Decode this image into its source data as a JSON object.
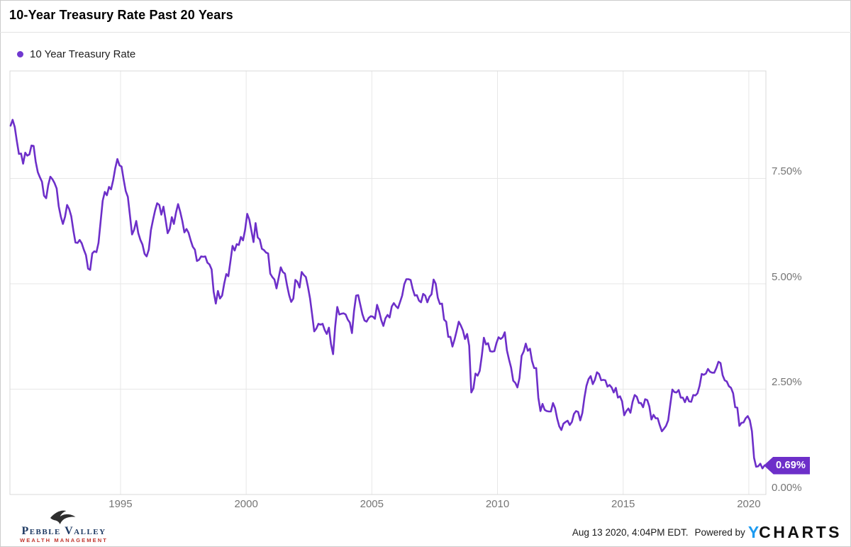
{
  "header": {
    "title": "10-Year Treasury Rate Past 20 Years"
  },
  "legend": {
    "label": "10 Year Treasury Rate",
    "dot_color": "#7038d0"
  },
  "chart_data": {
    "type": "line",
    "title": "10-Year Treasury Rate Past 20 Years",
    "series_name": "10 Year Treasury Rate",
    "line_color": "#6d2fc9",
    "grid_color": "#e7e7e7",
    "frame_color": "#d9d9d9",
    "legend_position": "top-left",
    "grid": true,
    "xlim": [
      1990.6,
      2020.68
    ],
    "ylim": [
      0,
      10.05
    ],
    "x_ticks": [
      {
        "value": 1995,
        "label": "1995"
      },
      {
        "value": 2000,
        "label": "2000"
      },
      {
        "value": 2005,
        "label": "2005"
      },
      {
        "value": 2010,
        "label": "2010"
      },
      {
        "value": 2015,
        "label": "2015"
      },
      {
        "value": 2020,
        "label": "2020"
      }
    ],
    "y_ticks": [
      {
        "value": 7.5,
        "label": "7.50%"
      },
      {
        "value": 5.0,
        "label": "5.00%"
      },
      {
        "value": 2.5,
        "label": "2.50%"
      },
      {
        "value": 0.0,
        "label": "0.00%"
      }
    ],
    "last_value": 0.69,
    "last_value_label": "0.69%",
    "badge_color": "#6d2fc9",
    "series_start_year": 1990,
    "series_start_month": 8,
    "monthly_values": [
      8.75,
      8.89,
      8.72,
      8.39,
      8.08,
      8.09,
      7.85,
      8.11,
      8.04,
      8.07,
      8.28,
      8.27,
      7.9,
      7.65,
      7.53,
      7.42,
      7.09,
      7.03,
      7.34,
      7.54,
      7.48,
      7.39,
      7.26,
      6.84,
      6.59,
      6.42,
      6.59,
      6.87,
      6.77,
      6.6,
      6.26,
      5.98,
      5.97,
      6.04,
      5.96,
      5.81,
      5.68,
      5.36,
      5.33,
      5.72,
      5.77,
      5.75,
      5.97,
      6.48,
      6.97,
      7.18,
      7.1,
      7.3,
      7.24,
      7.46,
      7.74,
      7.96,
      7.81,
      7.78,
      7.47,
      7.2,
      7.06,
      6.63,
      6.17,
      6.28,
      6.49,
      6.2,
      6.04,
      5.93,
      5.71,
      5.65,
      5.81,
      6.27,
      6.51,
      6.74,
      6.91,
      6.87,
      6.64,
      6.83,
      6.53,
      6.2,
      6.3,
      6.58,
      6.42,
      6.69,
      6.89,
      6.71,
      6.49,
      6.22,
      6.3,
      6.21,
      6.03,
      5.88,
      5.81,
      5.54,
      5.57,
      5.65,
      5.64,
      5.65,
      5.5,
      5.46,
      5.34,
      4.81,
      4.53,
      4.83,
      4.65,
      4.72,
      5.0,
      5.23,
      5.18,
      5.54,
      5.9,
      5.79,
      5.94,
      5.92,
      6.11,
      6.03,
      6.28,
      6.66,
      6.52,
      6.26,
      5.99,
      6.44,
      6.1,
      6.05,
      5.83,
      5.8,
      5.74,
      5.72,
      5.24,
      5.16,
      5.1,
      4.89,
      5.14,
      5.39,
      5.28,
      5.24,
      4.97,
      4.73,
      4.57,
      4.65,
      5.09,
      5.04,
      4.91,
      5.28,
      5.21,
      5.16,
      4.93,
      4.65,
      4.26,
      3.87,
      3.94,
      4.05,
      4.03,
      4.05,
      3.9,
      3.81,
      3.96,
      3.57,
      3.33,
      3.98,
      4.45,
      4.27,
      4.29,
      4.3,
      4.27,
      4.15,
      4.08,
      3.83,
      4.35,
      4.72,
      4.73,
      4.5,
      4.28,
      4.13,
      4.1,
      4.19,
      4.23,
      4.22,
      4.17,
      4.5,
      4.34,
      4.14,
      4.0,
      4.18,
      4.26,
      4.2,
      4.46,
      4.54,
      4.47,
      4.42,
      4.57,
      4.72,
      4.99,
      5.11,
      5.11,
      5.09,
      4.88,
      4.72,
      4.73,
      4.6,
      4.56,
      4.76,
      4.72,
      4.56,
      4.69,
      4.75,
      5.1,
      5.0,
      4.67,
      4.52,
      4.53,
      4.15,
      4.1,
      3.74,
      3.74,
      3.51,
      3.68,
      3.88,
      4.1,
      4.01,
      3.89,
      3.69,
      3.81,
      3.53,
      2.42,
      2.52,
      2.87,
      2.82,
      2.93,
      3.29,
      3.72,
      3.56,
      3.59,
      3.4,
      3.39,
      3.4,
      3.59,
      3.73,
      3.69,
      3.73,
      3.85,
      3.42,
      3.2,
      3.01,
      2.7,
      2.65,
      2.54,
      2.76,
      3.29,
      3.39,
      3.58,
      3.41,
      3.46,
      3.17,
      3.0,
      3.0,
      2.3,
      1.98,
      2.15,
      2.01,
      1.98,
      1.97,
      1.97,
      2.17,
      2.05,
      1.8,
      1.62,
      1.53,
      1.68,
      1.72,
      1.75,
      1.65,
      1.72,
      1.91,
      1.98,
      1.96,
      1.76,
      1.93,
      2.3,
      2.58,
      2.74,
      2.81,
      2.62,
      2.72,
      2.9,
      2.86,
      2.71,
      2.72,
      2.71,
      2.56,
      2.6,
      2.54,
      2.42,
      2.53,
      2.3,
      2.33,
      2.21,
      1.88,
      1.98,
      2.04,
      1.94,
      2.2,
      2.36,
      2.32,
      2.17,
      2.17,
      2.07,
      2.26,
      2.24,
      2.09,
      1.78,
      1.89,
      1.81,
      1.81,
      1.64,
      1.5,
      1.56,
      1.63,
      1.76,
      2.14,
      2.49,
      2.43,
      2.42,
      2.48,
      2.3,
      2.3,
      2.19,
      2.32,
      2.21,
      2.2,
      2.36,
      2.35,
      2.4,
      2.58,
      2.86,
      2.84,
      2.87,
      2.98,
      2.91,
      2.89,
      2.89,
      3.0,
      3.15,
      3.12,
      2.83,
      2.71,
      2.68,
      2.57,
      2.53,
      2.4,
      2.07,
      2.06,
      1.63,
      1.7,
      1.71,
      1.81,
      1.86,
      1.76,
      1.5,
      0.87,
      0.66,
      0.67,
      0.73,
      0.62,
      0.69
    ]
  },
  "footer": {
    "brand": {
      "line1": "Pebble Valley",
      "line2": "Wealth Management",
      "navy": "#1e3a63",
      "red": "#c0342c"
    },
    "attribution": {
      "timestamp": "Aug 13 2020, 4:04PM EDT.",
      "powered_by": "Powered by",
      "logo_y": "Y",
      "logo_rest": "CHARTS",
      "logo_y_color": "#1d9bf0"
    }
  }
}
